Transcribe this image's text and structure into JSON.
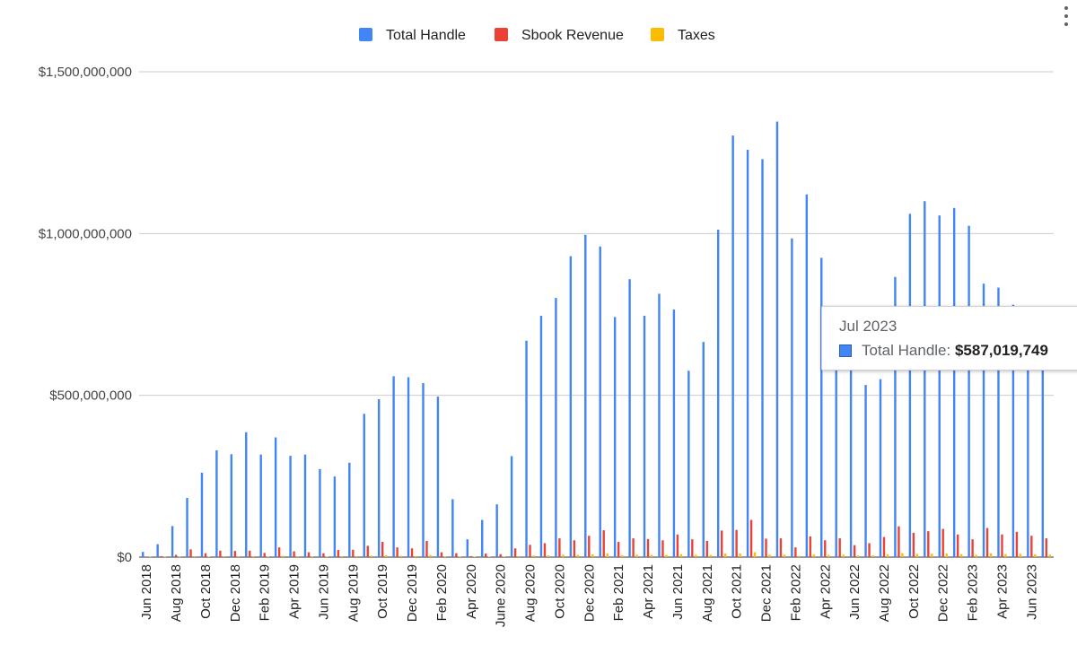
{
  "chart_data": {
    "type": "bar",
    "title": "",
    "xlabel": "",
    "ylabel": "",
    "ylim": [
      0,
      1500000000
    ],
    "y_ticks": [
      {
        "value": 0,
        "label": "$0"
      },
      {
        "value": 500000000,
        "label": "$500,000,000"
      },
      {
        "value": 1000000000,
        "label": "$1,000,000,000"
      },
      {
        "value": 1500000000,
        "label": "$1,500,000,000"
      }
    ],
    "legend_position": "top",
    "grid": true,
    "colors": {
      "Total Handle": "#4285f4",
      "Sbook Revenue": "#ea4335",
      "Taxes": "#fbbc04"
    },
    "categories": [
      "Jun 2018",
      "Jul 2018",
      "Aug 2018",
      "Sep 2018",
      "Oct 2018",
      "Nov 2018",
      "Dec 2018",
      "Jan 2019",
      "Feb 2019",
      "Mar 2019",
      "Apr 2019",
      "May 2019",
      "Jun 2019",
      "Jul 2019",
      "Aug 2019",
      "Sep 2019",
      "Oct 2019",
      "Nov 2019",
      "Dec 2019",
      "Jan 2020",
      "Feb 2020",
      "Mar 2020",
      "Apr 2020",
      "May 2020",
      "June 2020",
      "Jul 2020",
      "Aug 2020",
      "Sep 2020",
      "Oct 2020",
      "Nov 2020",
      "Dec 2020",
      "Jan 2021",
      "Feb 2021",
      "Mar 2021",
      "Apr 2021",
      "May 2021",
      "Jun 2021",
      "Jul 2021",
      "Aug 2021",
      "Sep 2021",
      "Oct 2021",
      "Nov 2021",
      "Dec 2021",
      "Jan 2022",
      "Feb 2022",
      "Mar 2022",
      "Apr 2022",
      "May 2022",
      "Jun 2022",
      "Jul 2022",
      "Aug 2022",
      "Sep 2022",
      "Oct 2022",
      "Nov 2022",
      "Dec 2022",
      "Jan 2023",
      "Feb 2023",
      "Mar 2023",
      "Apr 2023",
      "May 2023",
      "Jun 2023",
      "Jul 2023"
    ],
    "tick_label_indices": [
      0,
      2,
      4,
      6,
      8,
      10,
      12,
      14,
      16,
      18,
      20,
      22,
      24,
      26,
      28,
      30,
      32,
      34,
      36,
      38,
      40,
      42,
      44,
      46,
      48,
      50,
      52,
      54,
      56,
      58,
      60
    ],
    "series": [
      {
        "name": "Total Handle",
        "values": [
          16000000,
          40000000,
          96000000,
          183000000,
          261000000,
          330000000,
          318000000,
          386000000,
          317000000,
          370000000,
          313000000,
          317000000,
          272000000,
          249000000,
          292000000,
          443000000,
          488000000,
          559000000,
          556000000,
          538000000,
          496000000,
          179000000,
          55000000,
          115000000,
          163000000,
          312000000,
          669000000,
          746000000,
          801000000,
          930000000,
          996000000,
          960000000,
          742000000,
          859000000,
          746000000,
          814000000,
          765000000,
          576000000,
          665000000,
          1012000000,
          1303000000,
          1259000000,
          1230000000,
          1346000000,
          985000000,
          1121000000,
          925000000,
          750000000,
          680000000,
          532000000,
          550000000,
          866000000,
          1061000000,
          1100000000,
          1056000000,
          1079000000,
          1024000000,
          845000000,
          833000000,
          780000000,
          700000000,
          587019749
        ]
      },
      {
        "name": "Sbook Revenue",
        "values": [
          1500000,
          3000000,
          7000000,
          24000000,
          12000000,
          20000000,
          19000000,
          20000000,
          13000000,
          30000000,
          18000000,
          15000000,
          12000000,
          22000000,
          23000000,
          35000000,
          47000000,
          30000000,
          27000000,
          50000000,
          15000000,
          12000000,
          3000000,
          11000000,
          9000000,
          27000000,
          38000000,
          43000000,
          58000000,
          52000000,
          66000000,
          83000000,
          47000000,
          58000000,
          56000000,
          52000000,
          70000000,
          55000000,
          50000000,
          82000000,
          84000000,
          115000000,
          57000000,
          58000000,
          30000000,
          64000000,
          52000000,
          58000000,
          37000000,
          43000000,
          62000000,
          95000000,
          75000000,
          80000000,
          87000000,
          70000000,
          55000000,
          90000000,
          70000000,
          78000000,
          66000000,
          58000000
        ]
      },
      {
        "name": "Taxes",
        "values": [
          200000,
          500000,
          1000000,
          2500000,
          1500000,
          2500000,
          2500000,
          2500000,
          1800000,
          4000000,
          2500000,
          2000000,
          1700000,
          3000000,
          3000000,
          4500000,
          6000000,
          4000000,
          3500000,
          6500000,
          2000000,
          1500000,
          400000,
          1500000,
          1200000,
          3500000,
          5000000,
          5500000,
          7500000,
          7000000,
          8500000,
          11000000,
          6000000,
          7500000,
          7000000,
          7000000,
          9000000,
          7000000,
          6500000,
          11000000,
          11000000,
          15000000,
          7500000,
          7500000,
          4000000,
          8000000,
          7000000,
          7500000,
          5000000,
          5500000,
          8000000,
          12000000,
          10000000,
          10500000,
          11000000,
          9000000,
          7000000,
          12000000,
          9000000,
          10000000,
          8500000,
          7500000
        ]
      }
    ]
  },
  "tooltip": {
    "title": "Jul 2023",
    "series_label": "Total Handle:",
    "value": "$587,019,749"
  }
}
